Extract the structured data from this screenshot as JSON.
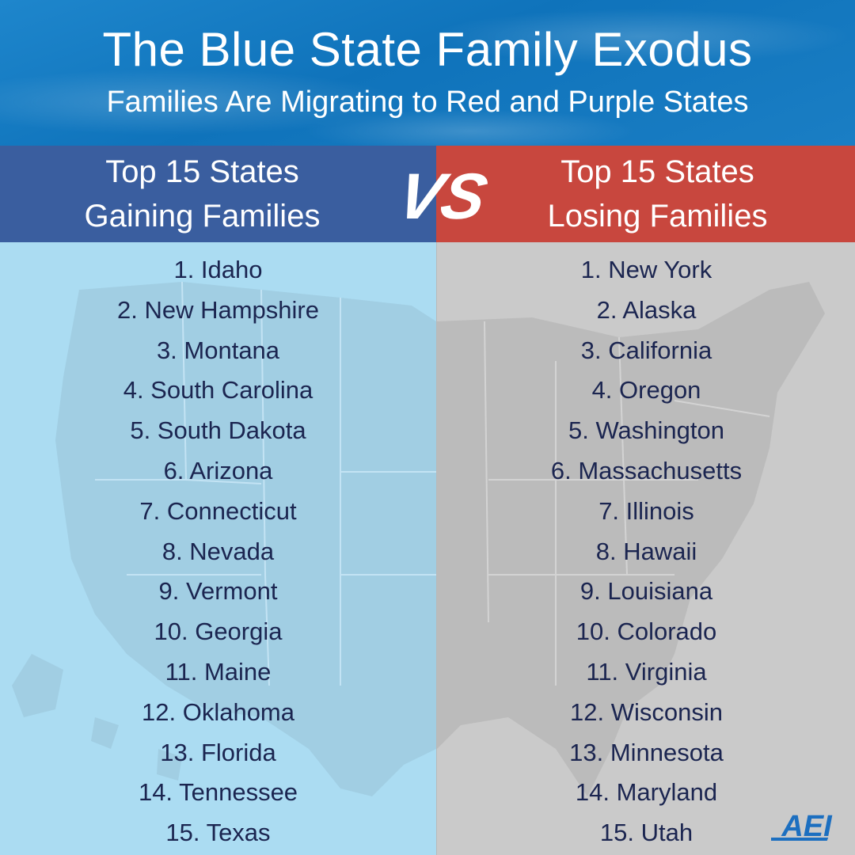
{
  "header": {
    "title": "The Blue State Family Exodus",
    "subtitle": "Families Are Migrating to Red and Purple States"
  },
  "gaining": {
    "heading_line1": "Top 15 States",
    "heading_line2": "Gaining Families",
    "items": [
      "1. Idaho",
      "2. New Hampshire",
      "3. Montana",
      "4. South Carolina",
      "5. South Dakota",
      "6. Arizona",
      "7. Connecticut",
      "8. Nevada",
      "9. Vermont",
      "10. Georgia",
      "11. Maine",
      "12. Oklahoma",
      "13. Florida",
      "14. Tennessee",
      "15. Texas"
    ]
  },
  "losing": {
    "heading_line1": "Top 15 States",
    "heading_line2": "Losing Families",
    "items": [
      "1. New York",
      "2. Alaska",
      "3. California",
      "4. Oregon",
      "5. Washington",
      "6. Massachusetts",
      "7. Illinois",
      "8. Hawaii",
      "9. Louisiana",
      "10. Colorado",
      "11. Virginia",
      "12. Wisconsin",
      "13. Minnesota",
      "14. Maryland",
      "15. Utah"
    ]
  },
  "vs_label": "VS",
  "logo_text": "AEI",
  "colors": {
    "banner_blue": "#1a7ec4",
    "gaining_header": "#3a5e9f",
    "losing_header": "#c8473e",
    "gaining_panel": "#abdcf2",
    "losing_panel": "#cacaca",
    "list_text": "#1b2550",
    "logo_blue": "#1c6fc0"
  },
  "icons": {
    "left_background": "us-map-west-silhouette",
    "right_background": "us-map-east-silhouette",
    "logo": "aei-logo"
  }
}
